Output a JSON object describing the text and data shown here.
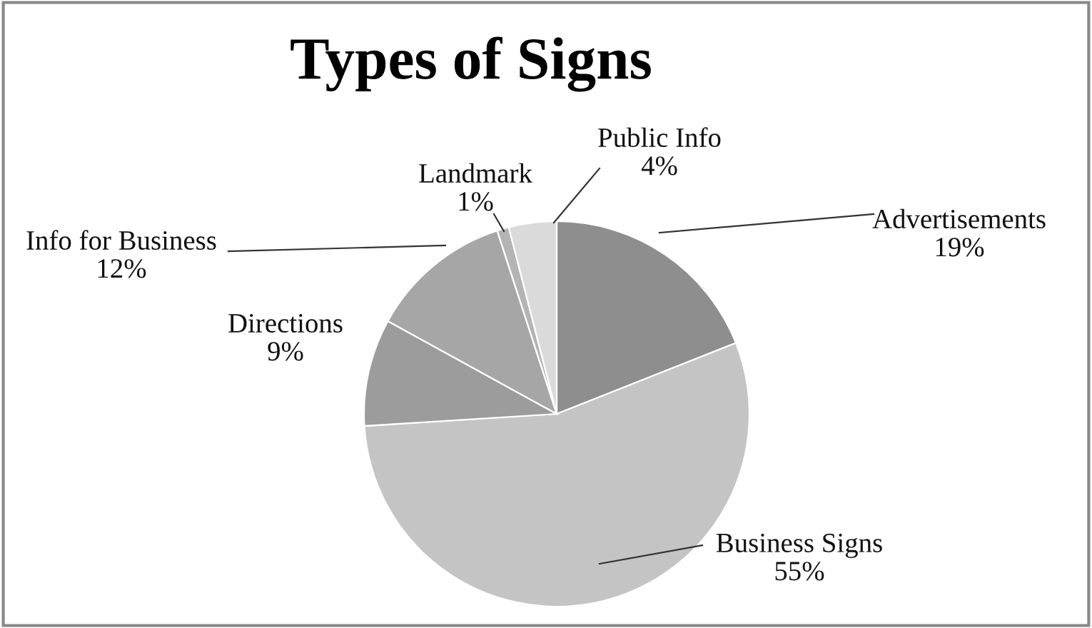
{
  "chart_data": {
    "type": "pie",
    "title": "Types of Signs",
    "categories": [
      "Advertisements",
      "Business Signs",
      "Directions",
      "Info for Business",
      "Landmark",
      "Public Info"
    ],
    "values": [
      19,
      55,
      9,
      12,
      1,
      4
    ],
    "value_labels": [
      "19%",
      "55%",
      "9%",
      "12%",
      "1%",
      "4%"
    ],
    "colors": [
      "#8e8e8e",
      "#c4c4c4",
      "#9c9c9c",
      "#a6a6a6",
      "#b4b4b4",
      "#dadada"
    ],
    "legend": false
  }
}
